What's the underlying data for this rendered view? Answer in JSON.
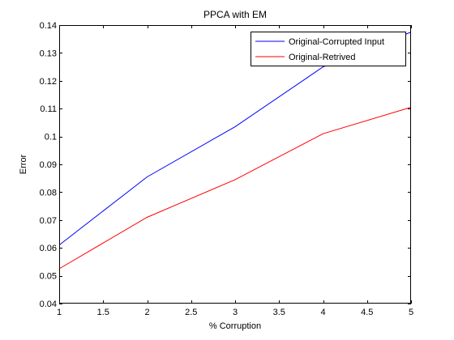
{
  "chart_data": {
    "type": "line",
    "title": "PPCA with EM",
    "xlabel": "% Corruption",
    "ylabel": "Error",
    "xlim": [
      1,
      5
    ],
    "ylim": [
      0.04,
      0.14
    ],
    "xticks": [
      1,
      1.5,
      2,
      2.5,
      3,
      3.5,
      4,
      4.5,
      5
    ],
    "xtick_labels": [
      "1",
      "1.5",
      "2",
      "2.5",
      "3",
      "3.5",
      "4",
      "4.5",
      "5"
    ],
    "yticks": [
      0.04,
      0.05,
      0.06,
      0.07,
      0.08,
      0.09,
      0.1,
      0.11,
      0.12,
      0.13,
      0.14
    ],
    "ytick_labels": [
      "0.04",
      "0.05",
      "0.06",
      "0.07",
      "0.08",
      "0.09",
      "0.1",
      "0.11",
      "0.12",
      "0.13",
      "0.14"
    ],
    "grid": false,
    "legend_position": "top-right",
    "x": [
      1,
      2,
      3,
      4,
      5
    ],
    "series": [
      {
        "name": "Original-Corrupted Input",
        "color": "#0000ff",
        "values": [
          0.061,
          0.0855,
          0.1035,
          0.125,
          0.1375
        ]
      },
      {
        "name": "Original-Retrived",
        "color": "#ff0000",
        "values": [
          0.0525,
          0.071,
          0.0845,
          0.101,
          0.1105
        ]
      }
    ]
  }
}
